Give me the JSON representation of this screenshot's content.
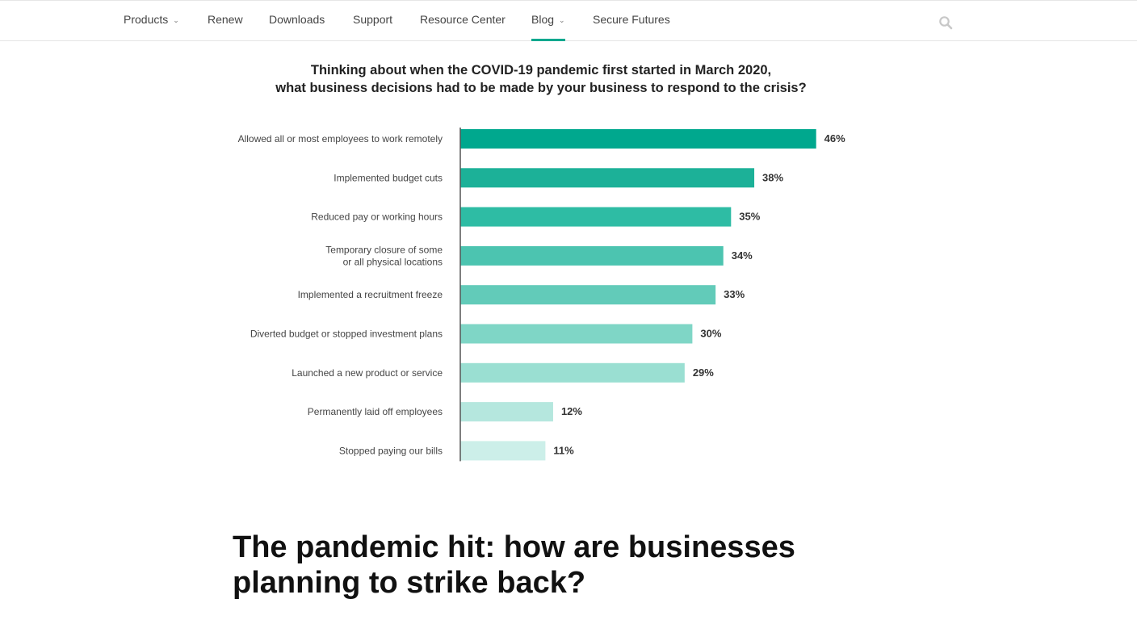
{
  "nav": {
    "items": [
      {
        "label": "Products",
        "dropdown": true,
        "active": false
      },
      {
        "label": "Renew",
        "dropdown": false,
        "active": false
      },
      {
        "label": "Downloads",
        "dropdown": false,
        "active": false
      },
      {
        "label": "Support",
        "dropdown": false,
        "active": false
      },
      {
        "label": "Resource Center",
        "dropdown": false,
        "active": false
      },
      {
        "label": "Blog",
        "dropdown": true,
        "active": true
      },
      {
        "label": "Secure Futures",
        "dropdown": false,
        "active": false
      }
    ],
    "search_icon": "search-icon",
    "accent_color": "#00a88e"
  },
  "chart": {
    "title_line1": "Thinking about when the COVID-19 pandemic first started in March 2020,",
    "title_line2": "what business decisions had to be made by your business to respond to the crisis?"
  },
  "chart_data": {
    "type": "bar",
    "orientation": "horizontal",
    "title": "Thinking about when the COVID-19 pandemic first started in March 2020, what business decisions had to be made by your business to respond to the crisis?",
    "categories": [
      [
        "Allowed all or most employees to work remotely"
      ],
      [
        "Implemented budget cuts"
      ],
      [
        "Reduced pay or working hours"
      ],
      [
        "Temporary closure of some",
        "or all physical locations"
      ],
      [
        "Implemented a recruitment freeze"
      ],
      [
        "Diverted budget or stopped investment plans"
      ],
      [
        "Launched a new product or service"
      ],
      [
        "Permanently laid off employees"
      ],
      [
        "Stopped paying our bills"
      ]
    ],
    "values": [
      46,
      38,
      35,
      34,
      33,
      30,
      29,
      12,
      11
    ],
    "value_labels": [
      "46%",
      "38%",
      "35%",
      "34%",
      "33%",
      "30%",
      "29%",
      "12%",
      "11%"
    ],
    "unit": "%",
    "colors": [
      "#00a88e",
      "#1cb198",
      "#2ebca4",
      "#4cc4b0",
      "#62cbb9",
      "#7fd6c6",
      "#9adfd2",
      "#b5e7de",
      "#ccefe9"
    ],
    "grid": false,
    "legend": "none"
  },
  "article": {
    "heading": "The pandemic hit: how are businesses planning to strike back?"
  }
}
